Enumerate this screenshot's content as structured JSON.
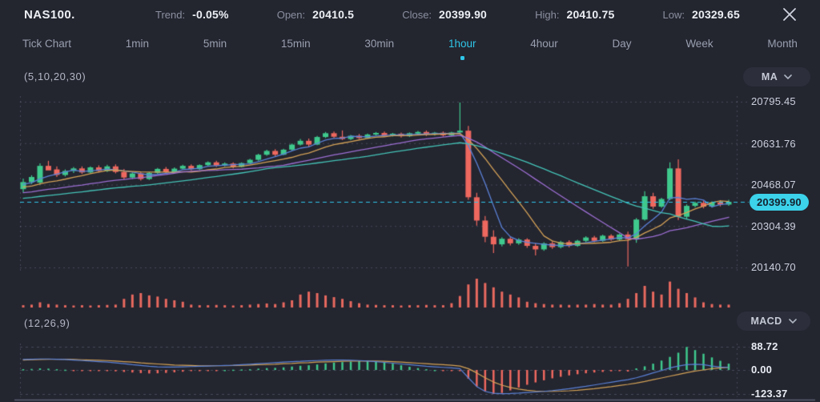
{
  "header": {
    "symbol": "NAS100.",
    "stats": [
      {
        "label": "Trend:",
        "value": "-0.05%"
      },
      {
        "label": "Open:",
        "value": "20410.5"
      },
      {
        "label": "Close:",
        "value": "20399.90"
      },
      {
        "label": "High:",
        "value": "20410.75"
      },
      {
        "label": "Low:",
        "value": "20329.65"
      }
    ]
  },
  "tabs": {
    "items": [
      "Tick Chart",
      "1min",
      "5min",
      "15min",
      "30min",
      "1hour",
      "4hour",
      "Day",
      "Week",
      "Month"
    ],
    "active": "1hour"
  },
  "main_indicator": {
    "params": "(5,10,20,30)",
    "selector_label": "MA"
  },
  "macd_indicator": {
    "params": "(12,26,9)",
    "selector_label": "MACD"
  },
  "price_axis": {
    "labels": [
      "20795.45",
      "20631.76",
      "20468.07",
      "20304.39",
      "20140.70"
    ],
    "values": [
      20795.45,
      20631.76,
      20468.07,
      20304.39,
      20140.7
    ],
    "current": {
      "label": "20399.90",
      "value": 20399.9
    }
  },
  "macd_axis": {
    "labels": [
      "88.72",
      "0.00",
      "-123.37"
    ],
    "values": [
      88.72,
      0,
      -123.37
    ]
  },
  "colors": {
    "background": "#23252f",
    "accent_cyan": "#2fc6e8",
    "price_tag_bg": "#3bd2ea",
    "bullish_green": "#3fc98d",
    "bearish_red": "#ee685f",
    "volume_red": "#e8695f",
    "ma_blue": "#5b82d8",
    "ma_orange": "#d4a257",
    "ma_purple": "#9d6fd4",
    "ma_teal": "#45c4b8",
    "macd_line_blue": "#5b82d8",
    "macd_signal_orange": "#d4a257",
    "grid": "rgba(164,174,196,0.28)"
  },
  "chart_data": {
    "type": "candlestick",
    "symbol": "NAS100",
    "timeframe": "1hour",
    "ma_periods": [
      5,
      10,
      20,
      30
    ],
    "macd_params": [
      12,
      26,
      9
    ],
    "price_range": [
      20140.7,
      20795.45
    ],
    "macd_range": [
      -123.37,
      88.72
    ],
    "candles": [
      [
        20450,
        20492,
        20438,
        20478
      ],
      [
        20478,
        20505,
        20470,
        20498
      ],
      [
        20476,
        20552,
        20468,
        20542
      ],
      [
        20542,
        20562,
        20530,
        20524
      ],
      [
        20528,
        20540,
        20498,
        20506
      ],
      [
        20506,
        20528,
        20500,
        20522
      ],
      [
        20522,
        20538,
        20514,
        20532
      ],
      [
        20532,
        20540,
        20510,
        20516
      ],
      [
        20516,
        20540,
        20512,
        20536
      ],
      [
        20536,
        20544,
        20516,
        20522
      ],
      [
        20522,
        20546,
        20518,
        20540
      ],
      [
        20540,
        20548,
        20512,
        20518
      ],
      [
        20518,
        20530,
        20488,
        20496
      ],
      [
        20496,
        20516,
        20490,
        20512
      ],
      [
        20512,
        20518,
        20484,
        20490
      ],
      [
        20490,
        20518,
        20486,
        20514
      ],
      [
        20514,
        20534,
        20510,
        20530
      ],
      [
        20530,
        20538,
        20512,
        20517
      ],
      [
        20517,
        20536,
        20514,
        20531
      ],
      [
        20531,
        20546,
        20528,
        20542
      ],
      [
        20542,
        20548,
        20524,
        20529
      ],
      [
        20529,
        20548,
        20526,
        20545
      ],
      [
        20545,
        20560,
        20542,
        20556
      ],
      [
        20556,
        20562,
        20538,
        20543
      ],
      [
        20543,
        20556,
        20540,
        20551
      ],
      [
        20551,
        20556,
        20532,
        20538
      ],
      [
        20538,
        20556,
        20536,
        20553
      ],
      [
        20553,
        20570,
        20550,
        20566
      ],
      [
        20566,
        20590,
        20562,
        20586
      ],
      [
        20586,
        20606,
        20582,
        20601
      ],
      [
        20601,
        20608,
        20580,
        20586
      ],
      [
        20586,
        20610,
        20584,
        20606
      ],
      [
        20606,
        20630,
        20602,
        20626
      ],
      [
        20626,
        20648,
        20622,
        20641
      ],
      [
        20641,
        20650,
        20618,
        20626
      ],
      [
        20626,
        20660,
        20624,
        20656
      ],
      [
        20656,
        20676,
        20652,
        20671
      ],
      [
        20671,
        20678,
        20652,
        20657
      ],
      [
        20657,
        20682,
        20644,
        20648
      ],
      [
        20648,
        20664,
        20644,
        20661
      ],
      [
        20661,
        20668,
        20648,
        20652
      ],
      [
        20652,
        20670,
        20650,
        20666
      ],
      [
        20666,
        20676,
        20662,
        20672
      ],
      [
        20672,
        20678,
        20656,
        20661
      ],
      [
        20661,
        20672,
        20658,
        20669
      ],
      [
        20669,
        20674,
        20654,
        20659
      ],
      [
        20659,
        20674,
        20656,
        20671
      ],
      [
        20671,
        20680,
        20668,
        20676
      ],
      [
        20676,
        20682,
        20660,
        20666
      ],
      [
        20666,
        20676,
        20662,
        20673
      ],
      [
        20673,
        20678,
        20658,
        20663
      ],
      [
        20663,
        20677,
        20660,
        20674
      ],
      [
        20674,
        20792,
        20670,
        20681
      ],
      [
        20681,
        20700,
        20408,
        20418
      ],
      [
        20418,
        20436,
        20306,
        20326
      ],
      [
        20326,
        20344,
        20240,
        20262
      ],
      [
        20262,
        20288,
        20198,
        20232
      ],
      [
        20232,
        20260,
        20224,
        20254
      ],
      [
        20254,
        20262,
        20228,
        20236
      ],
      [
        20236,
        20256,
        20230,
        20251
      ],
      [
        20251,
        20256,
        20218,
        20226
      ],
      [
        20226,
        20236,
        20188,
        20212
      ],
      [
        20212,
        20240,
        20206,
        20236
      ],
      [
        20236,
        20244,
        20214,
        20221
      ],
      [
        20221,
        20246,
        20216,
        20241
      ],
      [
        20241,
        20248,
        20220,
        20226
      ],
      [
        20226,
        20250,
        20222,
        20246
      ],
      [
        20246,
        20264,
        20240,
        20259
      ],
      [
        20259,
        20266,
        20240,
        20246
      ],
      [
        20246,
        20270,
        20242,
        20266
      ],
      [
        20266,
        20272,
        20246,
        20251
      ],
      [
        20251,
        20275,
        20246,
        20271
      ],
      [
        20271,
        20282,
        20145,
        20252
      ],
      [
        20252,
        20336,
        20238,
        20330
      ],
      [
        20330,
        20442,
        20326,
        20422
      ],
      [
        20422,
        20436,
        20372,
        20381
      ],
      [
        20381,
        20416,
        20376,
        20411
      ],
      [
        20411,
        20556,
        20406,
        20532
      ],
      [
        20532,
        20568,
        20328,
        20341
      ],
      [
        20341,
        20390,
        20332,
        20384
      ],
      [
        20384,
        20401,
        20378,
        20396
      ],
      [
        20396,
        20404,
        20374,
        20381
      ],
      [
        20381,
        20402,
        20377,
        20398
      ],
      [
        20398,
        20406,
        20382,
        20389
      ],
      [
        20389,
        20408,
        20384,
        20399.9
      ]
    ],
    "volume": [
      0.08,
      0.1,
      0.18,
      0.12,
      0.1,
      0.08,
      0.07,
      0.08,
      0.07,
      0.08,
      0.09,
      0.1,
      0.3,
      0.45,
      0.5,
      0.42,
      0.38,
      0.3,
      0.25,
      0.2,
      0.1,
      0.08,
      0.08,
      0.09,
      0.08,
      0.07,
      0.08,
      0.1,
      0.12,
      0.14,
      0.12,
      0.18,
      0.25,
      0.45,
      0.55,
      0.5,
      0.42,
      0.36,
      0.3,
      0.22,
      0.15,
      0.1,
      0.09,
      0.08,
      0.08,
      0.07,
      0.08,
      0.08,
      0.09,
      0.08,
      0.08,
      0.15,
      0.4,
      0.8,
      1.0,
      0.85,
      0.7,
      0.55,
      0.45,
      0.35,
      0.2,
      0.15,
      0.12,
      0.1,
      0.1,
      0.09,
      0.1,
      0.1,
      0.12,
      0.1,
      0.1,
      0.15,
      0.3,
      0.5,
      0.75,
      0.55,
      0.45,
      0.9,
      0.65,
      0.5,
      0.35,
      0.18,
      0.12,
      0.1,
      0.1
    ],
    "macd": {
      "histogram": [
        3,
        4,
        6,
        5,
        3,
        1,
        -1,
        -2,
        -3,
        -4,
        -5,
        -7,
        -10,
        -13,
        -16,
        -18,
        -17,
        -15,
        -12,
        -9,
        -6,
        -4,
        -2,
        -1,
        0,
        1,
        2,
        3,
        5,
        7,
        8,
        10,
        13,
        16,
        18,
        21,
        25,
        28,
        30,
        32,
        34,
        35,
        33,
        29,
        24,
        18,
        12,
        7,
        3,
        0,
        -2,
        -3,
        -3,
        -45,
        -85,
        -110,
        -123,
        -118,
        -105,
        -90,
        -76,
        -64,
        -53,
        -43,
        -35,
        -28,
        -22,
        -17,
        -13,
        -10,
        -7,
        -5,
        -8,
        6,
        14,
        24,
        36,
        50,
        66,
        88,
        76,
        62,
        48,
        35,
        24
      ],
      "macd_line": [
        40,
        41,
        42,
        42,
        41,
        40,
        38,
        36,
        34,
        32,
        30,
        27,
        24,
        20,
        17,
        14,
        12,
        11,
        11,
        12,
        13,
        14,
        15,
        16,
        17,
        18,
        20,
        22,
        24,
        26,
        28,
        30,
        32,
        33,
        35,
        36,
        37,
        38,
        38,
        37,
        36,
        34,
        32,
        29,
        26,
        23,
        20,
        17,
        14,
        12,
        10,
        8,
        5,
        -40,
        -85,
        -110,
        -120,
        -122,
        -121,
        -119,
        -116,
        -113,
        -110,
        -106,
        -101,
        -96,
        -90,
        -84,
        -77,
        -70,
        -63,
        -56,
        -50,
        -40,
        -28,
        -15,
        -3,
        8,
        15,
        20,
        22,
        20,
        15,
        11,
        10
      ],
      "signal_line": [
        38,
        39,
        40,
        41,
        41,
        41,
        40,
        39,
        38,
        37,
        36,
        34,
        32,
        30,
        27,
        25,
        23,
        21,
        19,
        18,
        17,
        16,
        16,
        16,
        16,
        17,
        18,
        19,
        20,
        21,
        22,
        24,
        25,
        27,
        28,
        30,
        31,
        32,
        33,
        34,
        34,
        34,
        34,
        33,
        32,
        30,
        28,
        26,
        24,
        22,
        20,
        18,
        15,
        5,
        -15,
        -40,
        -62,
        -78,
        -90,
        -98,
        -104,
        -108,
        -110,
        -110,
        -109,
        -107,
        -104,
        -100,
        -96,
        -91,
        -86,
        -80,
        -74,
        -67,
        -59,
        -50,
        -41,
        -32,
        -23,
        -14,
        -6,
        0,
        5,
        8,
        10
      ]
    }
  }
}
